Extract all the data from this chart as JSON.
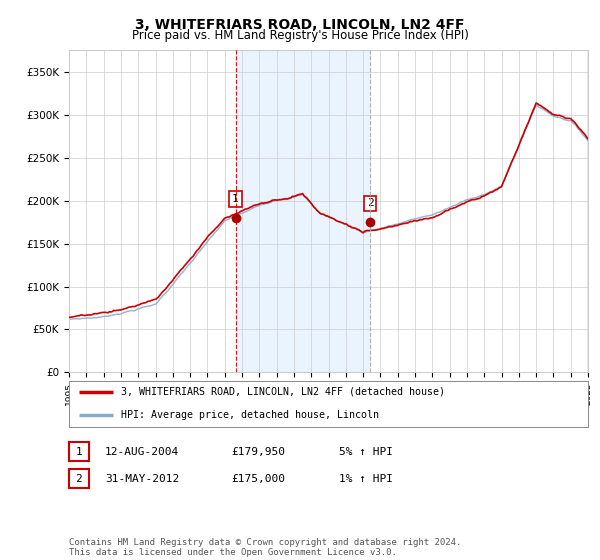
{
  "title": "3, WHITEFRIARS ROAD, LINCOLN, LN2 4FF",
  "subtitle": "Price paid vs. HM Land Registry's House Price Index (HPI)",
  "title_fontsize": 10,
  "subtitle_fontsize": 8.5,
  "background_color": "#ffffff",
  "plot_bg_color": "#ffffff",
  "grid_color": "#cccccc",
  "line1_color": "#cc0000",
  "line2_color": "#88aacc",
  "shade_color": "#ddeeff",
  "marker_color": "#aa0000",
  "vline1_color": "#cc0000",
  "vline2_color": "#aaaaaa",
  "hatch_color": "#cccccc",
  "ylim": [
    0,
    375000
  ],
  "yticks": [
    0,
    50000,
    100000,
    150000,
    200000,
    250000,
    300000,
    350000
  ],
  "ytick_labels": [
    "£0",
    "£50K",
    "£100K",
    "£150K",
    "£200K",
    "£250K",
    "£300K",
    "£350K"
  ],
  "sale1_year": 2004.625,
  "sale1_price": 179950,
  "sale2_year": 2012.417,
  "sale2_price": 175000,
  "legend1_label": "3, WHITEFRIARS ROAD, LINCOLN, LN2 4FF (detached house)",
  "legend2_label": "HPI: Average price, detached house, Lincoln",
  "table_row1": [
    "1",
    "12-AUG-2004",
    "£179,950",
    "5% ↑ HPI"
  ],
  "table_row2": [
    "2",
    "31-MAY-2012",
    "£175,000",
    "1% ↑ HPI"
  ],
  "footer": "Contains HM Land Registry data © Crown copyright and database right 2024.\nThis data is licensed under the Open Government Licence v3.0.",
  "footer_fontsize": 6.5
}
